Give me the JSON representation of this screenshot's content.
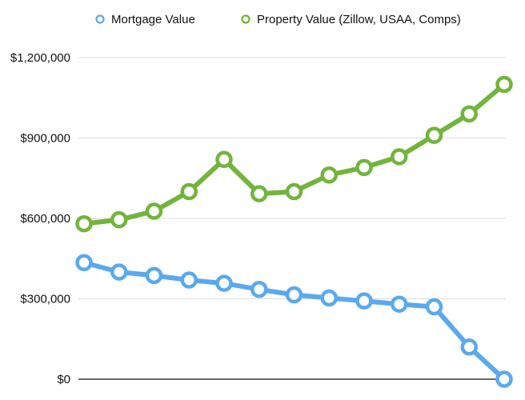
{
  "chart_data": {
    "type": "line",
    "title": "",
    "xlabel": "",
    "ylabel": "",
    "x": [
      1,
      2,
      3,
      4,
      5,
      6,
      7,
      8,
      9,
      10,
      11,
      12,
      13
    ],
    "ylim": [
      0,
      1200000
    ],
    "yticks": [
      0,
      300000,
      600000,
      900000,
      1200000
    ],
    "ytick_labels": [
      "$0",
      "$300,000",
      "$600,000",
      "$900,000",
      "$1,200,000"
    ],
    "grid": true,
    "legend_position": "top",
    "series": [
      {
        "name": "Mortgage Value",
        "color": "#5aa9ee",
        "values": [
          435000,
          400000,
          387000,
          370000,
          358000,
          335000,
          315000,
          303000,
          292000,
          280000,
          270000,
          120000,
          0
        ]
      },
      {
        "name": "Property Value (Zillow, USAA, Comps)",
        "color": "#72b43c",
        "values": [
          580000,
          595000,
          627000,
          700000,
          820000,
          692000,
          700000,
          762000,
          790000,
          830000,
          910000,
          990000,
          1100000
        ]
      }
    ]
  }
}
